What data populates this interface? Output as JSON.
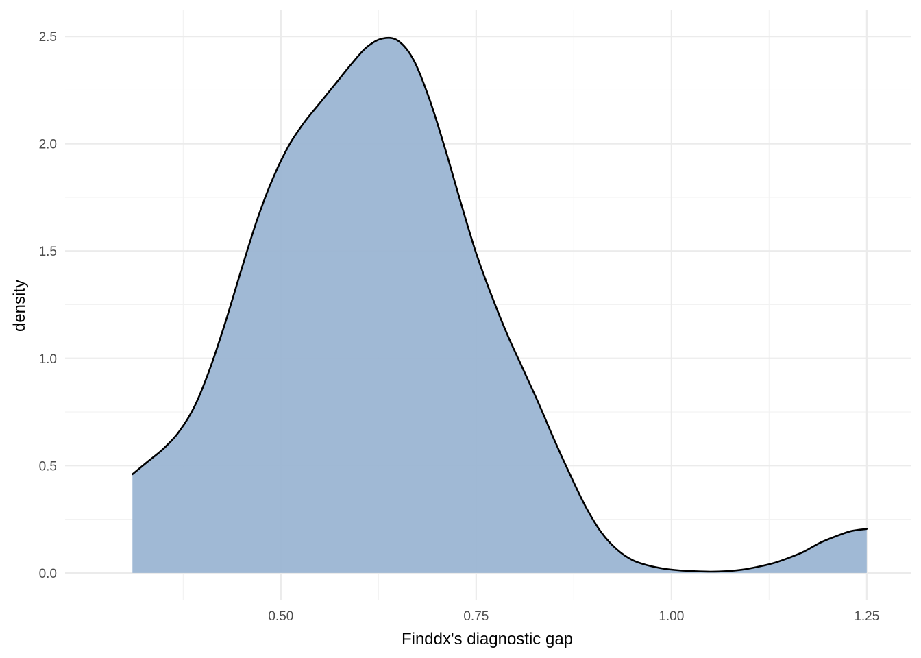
{
  "chart_data": {
    "type": "area",
    "subtype": "density",
    "title": "",
    "xlabel": "Finddx's diagnostic gap",
    "ylabel": "density",
    "xlim": [
      0.2238,
      1.3063
    ],
    "ylim": [
      -0.125,
      2.625
    ],
    "x_ticks": [
      0.5,
      0.75,
      1.0,
      1.25
    ],
    "x_tick_labels": [
      "0.50",
      "0.75",
      "1.00",
      "1.25"
    ],
    "x_minor_ticks": [
      0.375,
      0.625,
      0.875,
      1.125
    ],
    "y_ticks": [
      0.0,
      0.5,
      1.0,
      1.5,
      2.0,
      2.5
    ],
    "y_tick_labels": [
      "0.0",
      "0.5",
      "1.0",
      "1.5",
      "2.0",
      "2.5"
    ],
    "y_minor_ticks": [
      0.25,
      0.75,
      1.25,
      1.75,
      2.25
    ],
    "grid": true,
    "legend": "none",
    "fill_color": "#9bb5d3",
    "line_color": "#000000",
    "series": [
      {
        "x": [
          0.31,
          0.33,
          0.35,
          0.37,
          0.39,
          0.41,
          0.43,
          0.45,
          0.47,
          0.49,
          0.51,
          0.53,
          0.55,
          0.57,
          0.59,
          0.61,
          0.63,
          0.65,
          0.67,
          0.69,
          0.71,
          0.73,
          0.75,
          0.77,
          0.79,
          0.81,
          0.83,
          0.85,
          0.87,
          0.89,
          0.91,
          0.93,
          0.95,
          0.97,
          0.99,
          1.01,
          1.03,
          1.05,
          1.07,
          1.09,
          1.11,
          1.13,
          1.15,
          1.17,
          1.19,
          1.21,
          1.23,
          1.25
        ],
        "y": [
          0.46,
          0.52,
          0.58,
          0.66,
          0.78,
          0.96,
          1.18,
          1.42,
          1.65,
          1.84,
          1.99,
          2.1,
          2.19,
          2.28,
          2.37,
          2.45,
          2.49,
          2.48,
          2.39,
          2.21,
          1.98,
          1.73,
          1.49,
          1.29,
          1.11,
          0.95,
          0.79,
          0.62,
          0.46,
          0.31,
          0.19,
          0.11,
          0.06,
          0.035,
          0.02,
          0.012,
          0.008,
          0.006,
          0.008,
          0.015,
          0.028,
          0.045,
          0.07,
          0.1,
          0.14,
          0.17,
          0.195,
          0.205
        ]
      }
    ]
  }
}
